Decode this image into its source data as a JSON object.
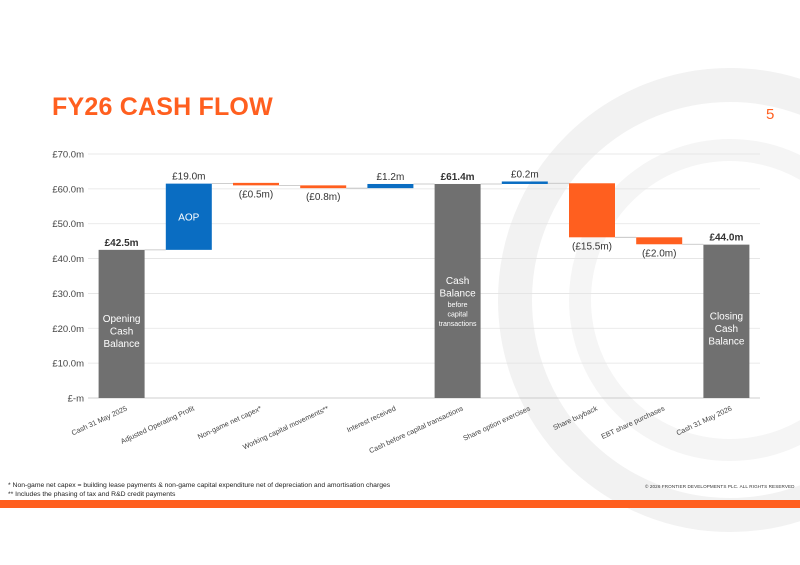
{
  "title": "FY26 CASH FLOW",
  "page_number": "5",
  "colors": {
    "accent": "#FF5F1F",
    "increase": "#0A6DC2",
    "total": "#707070",
    "decrease": "#FF5F1F",
    "small_increase": "#0A6DC2"
  },
  "chart_data": {
    "type": "bar",
    "subtype": "waterfall",
    "ylim": [
      0,
      70
    ],
    "y_ticks": [
      "£-m",
      "£10.0m",
      "£20.0m",
      "£30.0m",
      "£40.0m",
      "£50.0m",
      "£60.0m",
      "£70.0m"
    ],
    "y_tick_values": [
      0,
      10,
      20,
      30,
      40,
      50,
      60,
      70
    ],
    "grid": true,
    "bars": [
      {
        "category": "Cash 31 May 2025",
        "kind": "total",
        "start": 0,
        "end": 42.5,
        "label": "£42.5m",
        "inner_label": [
          "Opening",
          "Cash",
          "Balance"
        ]
      },
      {
        "category": "Adjusted Operating Profit",
        "kind": "increase",
        "start": 42.5,
        "end": 61.5,
        "label": "£19.0m",
        "inner_label": [
          "AOP"
        ]
      },
      {
        "category": "Non-game net capex*",
        "kind": "decrease",
        "start": 61.5,
        "end": 61.0,
        "label": "(£0.5m)",
        "inner_label": []
      },
      {
        "category": "Working capital movements**",
        "kind": "decrease",
        "start": 61.0,
        "end": 60.2,
        "label": "(£0.8m)",
        "inner_label": []
      },
      {
        "category": "Interest received",
        "kind": "increase",
        "start": 60.2,
        "end": 61.4,
        "label": "£1.2m",
        "inner_label": []
      },
      {
        "category": "Cash before capital transactions",
        "kind": "total",
        "start": 0,
        "end": 61.4,
        "label": "£61.4m",
        "inner_label": [
          "Cash",
          "Balance"
        ],
        "inner_sub_label": [
          "before",
          "capital",
          "transactions"
        ]
      },
      {
        "category": "Share option exercises",
        "kind": "increase",
        "start": 61.4,
        "end": 61.6,
        "label": "£0.2m",
        "inner_label": []
      },
      {
        "category": "Share buyback",
        "kind": "decrease",
        "start": 61.6,
        "end": 46.1,
        "label": "(£15.5m)",
        "inner_label": []
      },
      {
        "category": "EBT share purchases",
        "kind": "decrease",
        "start": 46.1,
        "end": 44.1,
        "label": "(£2.0m)",
        "inner_label": []
      },
      {
        "category": "Cash 31 May 2026",
        "kind": "total",
        "start": 0,
        "end": 44.0,
        "label": "£44.0m",
        "inner_label": [
          "Closing",
          "Cash",
          "Balance"
        ]
      }
    ]
  },
  "footnotes": [
    "* Non-game net capex = building lease payments & non-game capital expenditure net of depreciation and amortisation charges",
    "** Includes the phasing of tax and R&D credit payments"
  ],
  "copyright": "© 2026 FRONTIER DEVELOPMENTS PLC. ALL RIGHTS RESERVED"
}
